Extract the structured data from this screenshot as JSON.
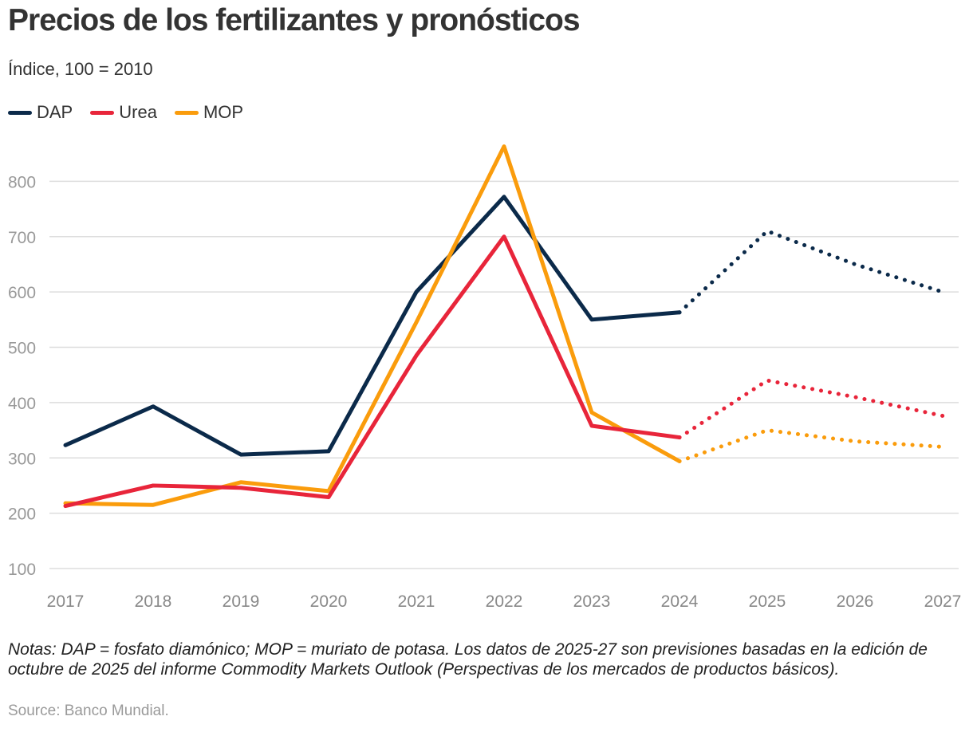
{
  "header": {
    "title": "Precios de los fertilizantes y pronósticos",
    "subtitle": "Índice, 100 = 2010"
  },
  "colors": {
    "DAP": "#0b2a4a",
    "Urea": "#e8253a",
    "MOP": "#fa9c0c",
    "grid": "#dddddd",
    "tick_text": "#999999"
  },
  "chart_data": {
    "type": "line",
    "title": "Precios de los fertilizantes y pronósticos",
    "ylabel": "Índice, 100 = 2010",
    "xlabel": "",
    "x": [
      2017,
      2018,
      2019,
      2020,
      2021,
      2022,
      2023,
      2024,
      2025,
      2026,
      2027
    ],
    "ylim": [
      100,
      900
    ],
    "yticks": [
      100,
      200,
      300,
      400,
      500,
      600,
      700,
      800
    ],
    "grid": true,
    "legend_position": "top-left",
    "forecast_start": 2024,
    "forecast_style": "dotted",
    "series": [
      {
        "name": "DAP",
        "values": [
          323,
          393,
          306,
          312,
          600,
          772,
          550,
          563,
          710,
          650,
          600
        ]
      },
      {
        "name": "Urea",
        "values": [
          213,
          250,
          246,
          229,
          485,
          700,
          358,
          337,
          440,
          410,
          376
        ]
      },
      {
        "name": "MOP",
        "values": [
          218,
          215,
          256,
          240,
          545,
          863,
          382,
          294,
          350,
          330,
          320
        ]
      }
    ]
  },
  "footer": {
    "notes": "Notas: DAP = fosfato diamónico; MOP = muriato de potasa. Los datos de 2025-27 son previsiones basadas en la edición de octubre de 2025 del informe Commodity Markets Outlook (Perspectivas de los mercados de productos básicos).",
    "source": "Source: Banco Mundial."
  }
}
